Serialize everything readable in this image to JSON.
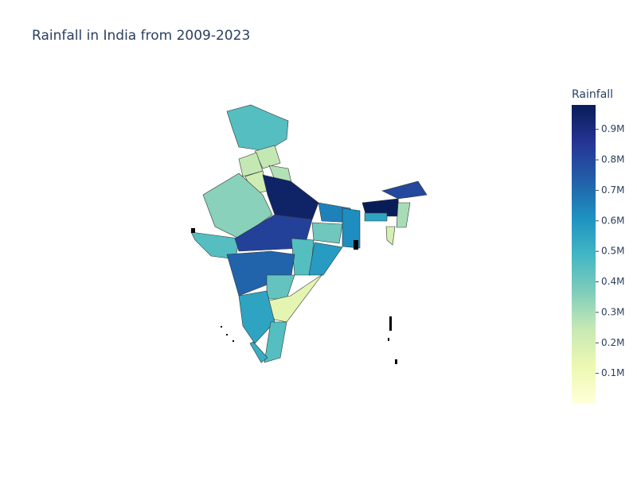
{
  "chart_data": {
    "type": "choropleth",
    "title": "Rainfall in India from 2009-2023",
    "colorbar_title": "Rainfall",
    "values": [
      450000,
      250000,
      250000,
      280000,
      220000,
      350000,
      950000,
      450000,
      820000,
      650000,
      400000,
      620000,
      450000,
      580000,
      720000,
      420000,
      150000,
      550000,
      450000,
      520000,
      980000,
      800000,
      550000,
      300000,
      200000
    ],
    "colorlim": [
      0,
      980000
    ],
    "colorticks": [
      {
        "value": 100000,
        "label": "0.1M"
      },
      {
        "value": 200000,
        "label": "0.2M"
      },
      {
        "value": 300000,
        "label": "0.3M"
      },
      {
        "value": 400000,
        "label": "0.4M"
      },
      {
        "value": 500000,
        "label": "0.5M"
      },
      {
        "value": 600000,
        "label": "0.6M"
      },
      {
        "value": 700000,
        "label": "0.7M"
      },
      {
        "value": 800000,
        "label": "0.8M"
      },
      {
        "value": 900000,
        "label": "0.9M"
      }
    ],
    "colorscale": [
      "#ffffd9",
      "#edf8b1",
      "#c7e9b4",
      "#7fcdbb",
      "#41b6c4",
      "#1d91c0",
      "#225ea8",
      "#253494",
      "#081d58"
    ]
  }
}
